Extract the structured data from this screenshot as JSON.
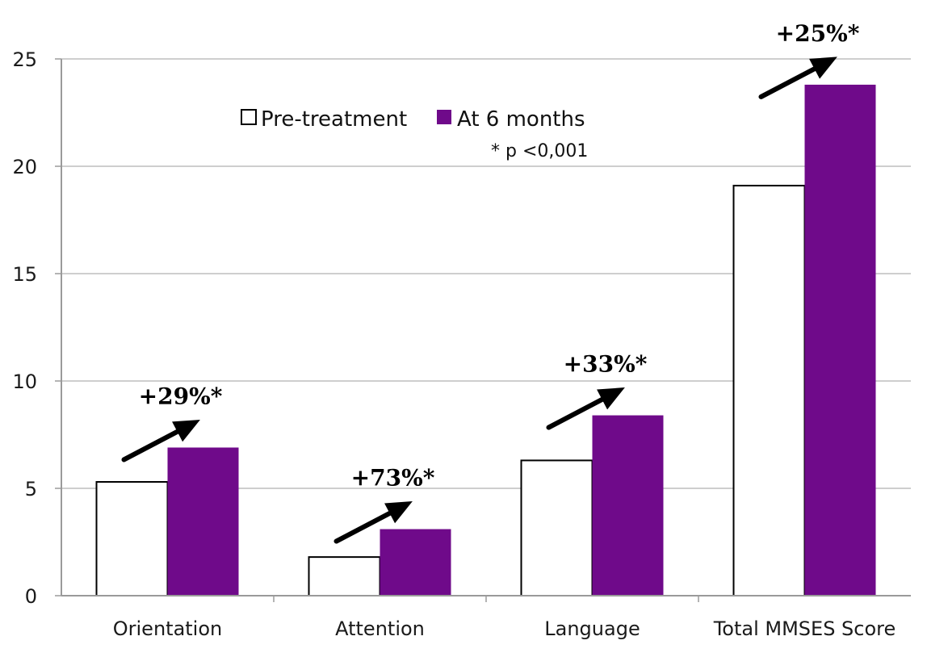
{
  "chart_data": {
    "type": "bar",
    "categories": [
      "Orientation",
      "Attention",
      "Language",
      "Total MMSES Score"
    ],
    "series": [
      {
        "name": "Pre-treatment",
        "values": [
          5.3,
          1.8,
          6.3,
          19.1
        ],
        "color": "#ffffff"
      },
      {
        "name": "At 6 months",
        "values": [
          6.9,
          3.1,
          8.4,
          23.8
        ],
        "color": "#6f0a8a"
      }
    ],
    "ylim": [
      0,
      25
    ],
    "yticks": [
      0,
      5,
      10,
      15,
      20,
      25
    ],
    "grid": true,
    "legend_position": "top-center",
    "annotations": [
      "+29%*",
      "+73%*",
      "+33%*",
      "+25%*"
    ],
    "note": "* p <0,001"
  }
}
